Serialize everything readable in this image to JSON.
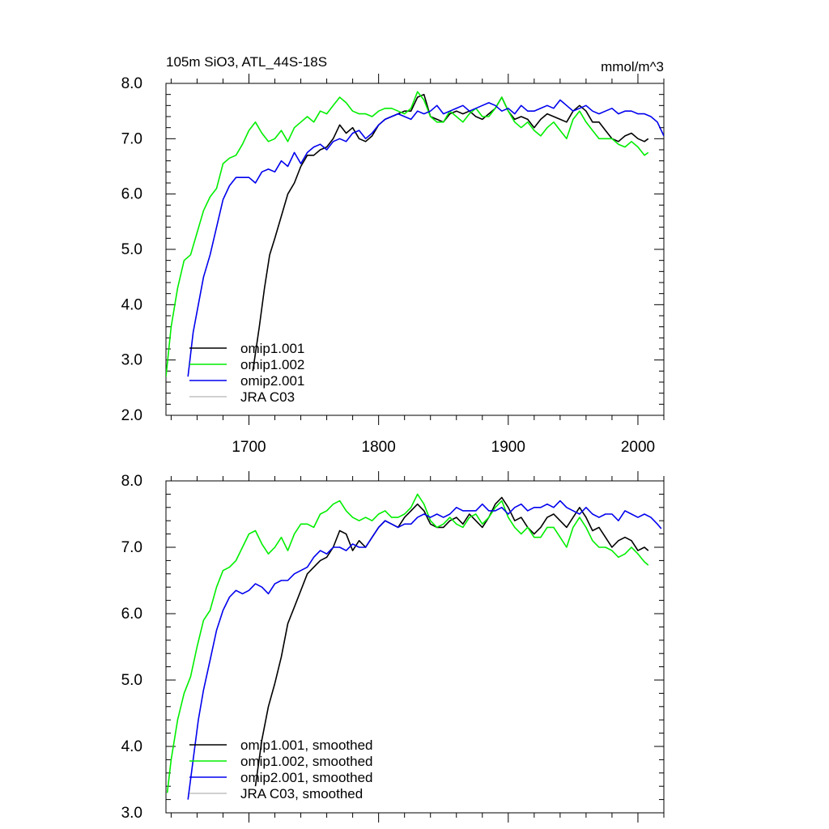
{
  "chart_data": [
    {
      "type": "line",
      "title": "105m SiO3, ATL_44S-18S",
      "units": "mmol/m^3",
      "xlim": [
        1636,
        2020
      ],
      "ylim": [
        2.0,
        8.0
      ],
      "xticks": [
        1700,
        1800,
        1900,
        2000
      ],
      "xtick_labels": [
        "1700",
        "1800",
        "1900",
        "2000"
      ],
      "yticks": [
        2.0,
        3.0,
        4.0,
        5.0,
        6.0,
        7.0,
        8.0
      ],
      "ytick_labels": [
        "2.0",
        "3.0",
        "4.0",
        "5.0",
        "6.0",
        "7.0",
        "8.0"
      ],
      "legend": "bottom-left",
      "series": [
        {
          "name": "omip1.001",
          "color": "#000000",
          "x": [
            1703,
            1708,
            1712,
            1716,
            1720,
            1725,
            1730,
            1735,
            1740,
            1745,
            1750,
            1755,
            1760,
            1765,
            1770,
            1775,
            1780,
            1785,
            1790,
            1795,
            1800,
            1805,
            1810,
            1815,
            1820,
            1825,
            1830,
            1835,
            1840,
            1845,
            1850,
            1855,
            1860,
            1865,
            1870,
            1875,
            1880,
            1885,
            1890,
            1895,
            1900,
            1905,
            1910,
            1915,
            1920,
            1925,
            1930,
            1935,
            1940,
            1945,
            1950,
            1955,
            1960,
            1965,
            1970,
            1975,
            1980,
            1985,
            1990,
            1995,
            2000,
            2005,
            2008
          ],
          "y": [
            2.8,
            3.6,
            4.3,
            4.9,
            5.2,
            5.6,
            6.0,
            6.2,
            6.5,
            6.7,
            6.7,
            6.8,
            6.85,
            7.0,
            7.25,
            7.1,
            7.2,
            7.0,
            6.95,
            7.05,
            7.25,
            7.35,
            7.4,
            7.45,
            7.5,
            7.5,
            7.75,
            7.8,
            7.4,
            7.35,
            7.3,
            7.45,
            7.5,
            7.45,
            7.5,
            7.4,
            7.35,
            7.45,
            7.55,
            7.75,
            7.5,
            7.35,
            7.4,
            7.35,
            7.2,
            7.35,
            7.45,
            7.4,
            7.35,
            7.3,
            7.5,
            7.6,
            7.5,
            7.3,
            7.3,
            7.15,
            7.0,
            6.95,
            7.05,
            7.1,
            7.0,
            6.95,
            7.0
          ]
        },
        {
          "name": "omip1.002",
          "color": "#00ee00",
          "x": [
            1636,
            1640,
            1645,
            1650,
            1655,
            1660,
            1665,
            1670,
            1675,
            1680,
            1685,
            1690,
            1695,
            1700,
            1705,
            1710,
            1715,
            1720,
            1725,
            1730,
            1735,
            1740,
            1745,
            1750,
            1755,
            1760,
            1765,
            1770,
            1775,
            1780,
            1785,
            1790,
            1795,
            1800,
            1805,
            1810,
            1815,
            1820,
            1825,
            1830,
            1835,
            1840,
            1845,
            1850,
            1855,
            1860,
            1865,
            1870,
            1875,
            1880,
            1885,
            1890,
            1895,
            1900,
            1905,
            1910,
            1915,
            1920,
            1925,
            1930,
            1935,
            1940,
            1945,
            1950,
            1955,
            1960,
            1965,
            1970,
            1975,
            1980,
            1985,
            1990,
            1995,
            2000,
            2005,
            2008
          ],
          "y": [
            2.7,
            3.6,
            4.3,
            4.8,
            4.9,
            5.3,
            5.7,
            5.95,
            6.1,
            6.55,
            6.65,
            6.7,
            6.9,
            7.15,
            7.3,
            7.1,
            6.95,
            7.0,
            7.15,
            6.95,
            7.2,
            7.3,
            7.4,
            7.3,
            7.5,
            7.45,
            7.6,
            7.75,
            7.65,
            7.5,
            7.45,
            7.45,
            7.4,
            7.5,
            7.55,
            7.55,
            7.5,
            7.45,
            7.55,
            7.85,
            7.7,
            7.4,
            7.3,
            7.3,
            7.5,
            7.4,
            7.3,
            7.45,
            7.55,
            7.4,
            7.4,
            7.55,
            7.75,
            7.5,
            7.3,
            7.2,
            7.3,
            7.15,
            7.05,
            7.2,
            7.3,
            7.15,
            7.0,
            7.35,
            7.5,
            7.3,
            7.15,
            7.0,
            7.0,
            7.0,
            6.9,
            6.85,
            6.95,
            6.85,
            6.7,
            6.75
          ]
        },
        {
          "name": "omip2.001",
          "color": "#0000ee",
          "x": [
            1653,
            1657,
            1661,
            1665,
            1670,
            1675,
            1680,
            1685,
            1690,
            1695,
            1700,
            1705,
            1710,
            1715,
            1720,
            1725,
            1730,
            1735,
            1740,
            1745,
            1750,
            1755,
            1760,
            1765,
            1770,
            1775,
            1780,
            1785,
            1790,
            1795,
            1800,
            1805,
            1810,
            1815,
            1820,
            1825,
            1830,
            1835,
            1840,
            1845,
            1850,
            1855,
            1860,
            1865,
            1870,
            1875,
            1880,
            1885,
            1890,
            1895,
            1900,
            1905,
            1910,
            1915,
            1920,
            1925,
            1930,
            1935,
            1940,
            1945,
            1950,
            1955,
            1960,
            1965,
            1970,
            1975,
            1980,
            1985,
            1990,
            1995,
            2000,
            2005,
            2010,
            2015,
            2020
          ],
          "y": [
            2.7,
            3.5,
            4.0,
            4.5,
            4.9,
            5.4,
            5.9,
            6.15,
            6.3,
            6.3,
            6.3,
            6.2,
            6.4,
            6.45,
            6.4,
            6.6,
            6.5,
            6.75,
            6.55,
            6.75,
            6.85,
            6.9,
            6.8,
            6.95,
            7.0,
            6.95,
            7.1,
            7.15,
            7.0,
            7.1,
            7.25,
            7.35,
            7.4,
            7.45,
            7.4,
            7.35,
            7.5,
            7.45,
            7.5,
            7.6,
            7.45,
            7.5,
            7.55,
            7.6,
            7.5,
            7.55,
            7.6,
            7.65,
            7.6,
            7.5,
            7.55,
            7.45,
            7.6,
            7.5,
            7.5,
            7.55,
            7.6,
            7.55,
            7.7,
            7.6,
            7.5,
            7.55,
            7.6,
            7.5,
            7.45,
            7.5,
            7.55,
            7.45,
            7.5,
            7.5,
            7.45,
            7.45,
            7.4,
            7.3,
            7.05
          ]
        },
        {
          "name": "JRA C03",
          "color": "#c0c0c0",
          "x": [],
          "y": []
        }
      ]
    },
    {
      "type": "line",
      "title": "",
      "xlim": [
        1636,
        2020
      ],
      "ylim": [
        3.0,
        8.0
      ],
      "xticks": [
        1700,
        1800,
        1900,
        2000
      ],
      "xtick_labels": [],
      "yticks": [
        3.0,
        4.0,
        5.0,
        6.0,
        7.0,
        8.0
      ],
      "ytick_labels": [
        "3.0",
        "4.0",
        "5.0",
        "6.0",
        "7.0",
        "8.0"
      ],
      "legend": "bottom-left",
      "series": [
        {
          "name": "omip1.001, smoothed",
          "color": "#000000",
          "x": [
            1705,
            1710,
            1715,
            1720,
            1725,
            1730,
            1735,
            1740,
            1745,
            1750,
            1755,
            1760,
            1765,
            1770,
            1775,
            1780,
            1785,
            1790,
            1795,
            1800,
            1805,
            1810,
            1815,
            1820,
            1825,
            1830,
            1835,
            1840,
            1845,
            1850,
            1855,
            1860,
            1865,
            1870,
            1875,
            1880,
            1885,
            1890,
            1895,
            1900,
            1905,
            1910,
            1915,
            1920,
            1925,
            1930,
            1935,
            1940,
            1945,
            1950,
            1955,
            1960,
            1965,
            1970,
            1975,
            1980,
            1985,
            1990,
            1995,
            2000,
            2005,
            2008
          ],
          "y": [
            3.4,
            4.1,
            4.6,
            4.95,
            5.35,
            5.85,
            6.1,
            6.35,
            6.6,
            6.7,
            6.8,
            6.85,
            7.0,
            7.25,
            7.2,
            6.95,
            7.1,
            7.0,
            7.15,
            7.3,
            7.4,
            7.35,
            7.3,
            7.45,
            7.55,
            7.65,
            7.55,
            7.35,
            7.3,
            7.3,
            7.4,
            7.45,
            7.35,
            7.5,
            7.4,
            7.3,
            7.45,
            7.65,
            7.75,
            7.6,
            7.4,
            7.45,
            7.3,
            7.2,
            7.3,
            7.45,
            7.5,
            7.4,
            7.3,
            7.45,
            7.6,
            7.45,
            7.25,
            7.3,
            7.15,
            7.0,
            7.1,
            7.15,
            7.1,
            6.95,
            7.0,
            6.95
          ]
        },
        {
          "name": "omip1.002, smoothed",
          "color": "#00ee00",
          "x": [
            1637,
            1640,
            1645,
            1650,
            1655,
            1660,
            1665,
            1670,
            1675,
            1680,
            1685,
            1690,
            1695,
            1700,
            1705,
            1710,
            1715,
            1720,
            1725,
            1730,
            1735,
            1740,
            1745,
            1750,
            1755,
            1760,
            1765,
            1770,
            1775,
            1780,
            1785,
            1790,
            1795,
            1800,
            1805,
            1810,
            1815,
            1820,
            1825,
            1830,
            1835,
            1840,
            1845,
            1850,
            1855,
            1860,
            1865,
            1870,
            1875,
            1880,
            1885,
            1890,
            1895,
            1900,
            1905,
            1910,
            1915,
            1920,
            1925,
            1930,
            1935,
            1940,
            1945,
            1950,
            1955,
            1960,
            1965,
            1970,
            1975,
            1980,
            1985,
            1990,
            1995,
            2000,
            2005,
            2008
          ],
          "y": [
            3.3,
            3.8,
            4.4,
            4.8,
            5.05,
            5.5,
            5.9,
            6.05,
            6.4,
            6.65,
            6.7,
            6.8,
            7.0,
            7.2,
            7.25,
            7.05,
            6.9,
            7.0,
            7.15,
            6.95,
            7.2,
            7.35,
            7.35,
            7.3,
            7.5,
            7.55,
            7.65,
            7.7,
            7.55,
            7.45,
            7.4,
            7.45,
            7.4,
            7.5,
            7.55,
            7.45,
            7.45,
            7.5,
            7.6,
            7.8,
            7.65,
            7.4,
            7.3,
            7.35,
            7.45,
            7.35,
            7.3,
            7.45,
            7.5,
            7.35,
            7.45,
            7.6,
            7.7,
            7.45,
            7.3,
            7.2,
            7.3,
            7.15,
            7.15,
            7.3,
            7.3,
            7.15,
            7.0,
            7.3,
            7.45,
            7.3,
            7.1,
            7.0,
            7.0,
            6.95,
            6.85,
            6.9,
            7.0,
            6.9,
            6.78,
            6.73
          ]
        },
        {
          "name": "omip2.001, smoothed",
          "color": "#0000ee",
          "x": [
            1653,
            1657,
            1661,
            1665,
            1670,
            1675,
            1680,
            1685,
            1690,
            1695,
            1700,
            1705,
            1710,
            1715,
            1720,
            1725,
            1730,
            1735,
            1740,
            1745,
            1750,
            1755,
            1760,
            1765,
            1770,
            1775,
            1780,
            1785,
            1790,
            1795,
            1800,
            1805,
            1810,
            1815,
            1820,
            1825,
            1830,
            1835,
            1840,
            1845,
            1850,
            1855,
            1860,
            1865,
            1870,
            1875,
            1880,
            1885,
            1890,
            1895,
            1900,
            1905,
            1910,
            1915,
            1920,
            1925,
            1930,
            1935,
            1940,
            1945,
            1950,
            1955,
            1960,
            1965,
            1970,
            1975,
            1980,
            1985,
            1990,
            1995,
            2000,
            2005,
            2010,
            2015,
            2018
          ],
          "y": [
            3.2,
            3.8,
            4.4,
            4.85,
            5.3,
            5.75,
            6.05,
            6.25,
            6.35,
            6.3,
            6.35,
            6.45,
            6.4,
            6.3,
            6.45,
            6.5,
            6.5,
            6.6,
            6.65,
            6.7,
            6.85,
            6.95,
            6.9,
            7.0,
            7.0,
            6.95,
            7.05,
            7.0,
            7.0,
            7.15,
            7.3,
            7.4,
            7.35,
            7.3,
            7.35,
            7.35,
            7.45,
            7.5,
            7.45,
            7.5,
            7.45,
            7.5,
            7.6,
            7.55,
            7.55,
            7.55,
            7.65,
            7.55,
            7.55,
            7.6,
            7.5,
            7.6,
            7.65,
            7.55,
            7.6,
            7.6,
            7.65,
            7.6,
            7.7,
            7.6,
            7.55,
            7.5,
            7.6,
            7.5,
            7.45,
            7.5,
            7.5,
            7.4,
            7.55,
            7.5,
            7.45,
            7.5,
            7.45,
            7.35,
            7.28
          ]
        },
        {
          "name": "JRA C03, smoothed",
          "color": "#c0c0c0",
          "x": [],
          "y": []
        }
      ]
    }
  ]
}
